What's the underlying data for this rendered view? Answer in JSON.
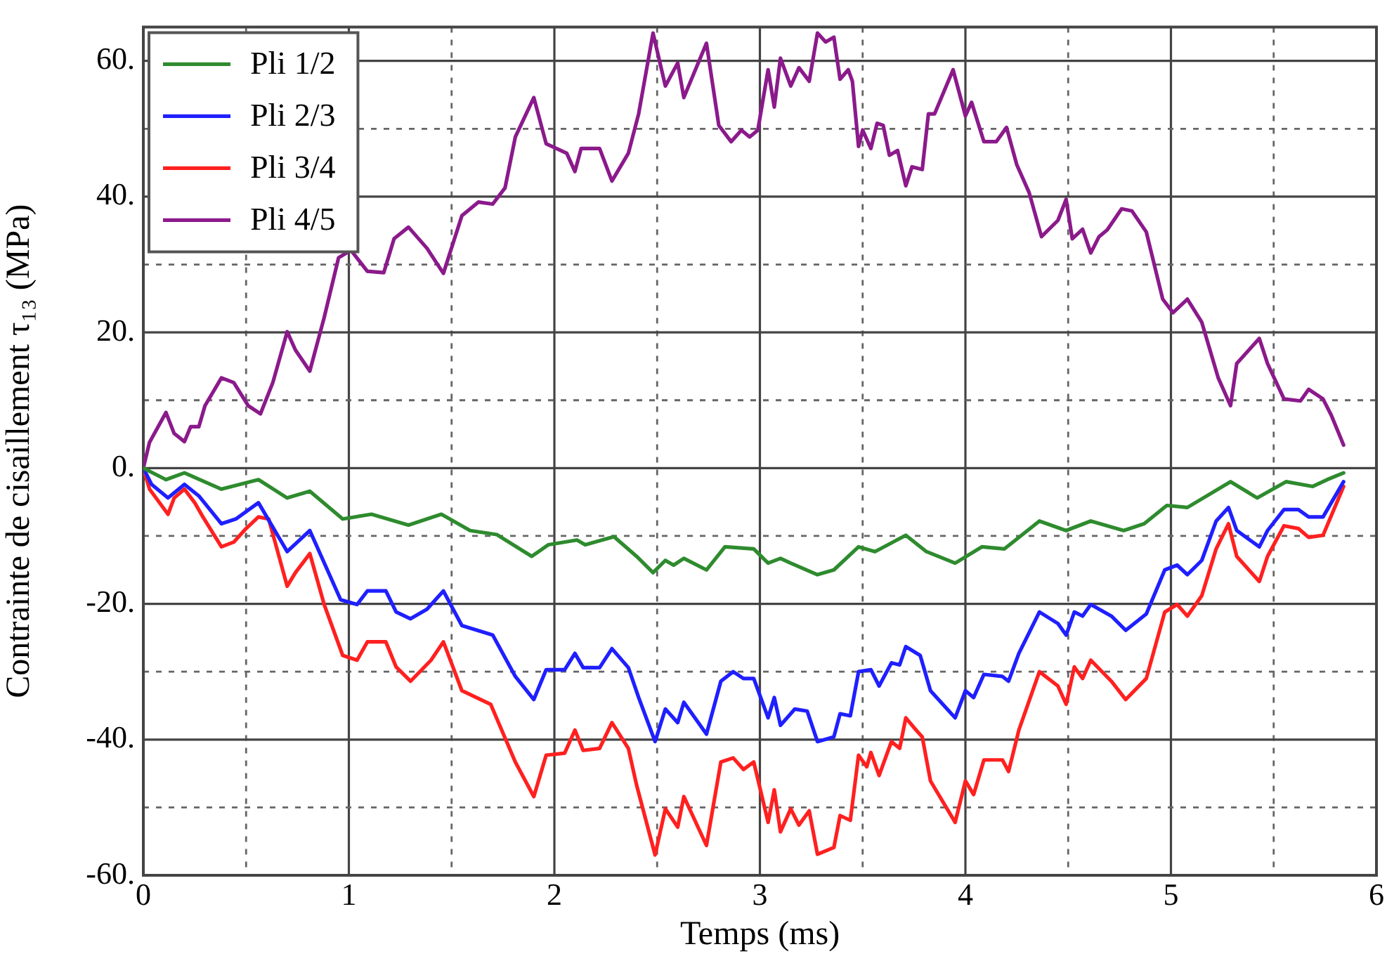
{
  "chart_data": {
    "type": "line",
    "xlabel": "Temps (ms)",
    "ylabel": "Contrainte de cisaillement τ₁₃ (MPa)",
    "xlim": [
      0,
      6
    ],
    "ylim": [
      -60,
      65
    ],
    "xticks": [
      0,
      {
        "value": 0.5,
        "label": null
      },
      1,
      {
        "value": 1.5,
        "label": null
      },
      2,
      {
        "value": 2.5,
        "label": null
      },
      3,
      {
        "value": 3.5,
        "label": null
      },
      4,
      {
        "value": 4.5,
        "label": null
      },
      5,
      {
        "value": 5.5,
        "label": null
      },
      6
    ],
    "yticks": [
      {
        "value": -60,
        "label": "-60."
      },
      {
        "value": -50,
        "label": null
      },
      {
        "value": -40,
        "label": "-40."
      },
      {
        "value": -30,
        "label": null
      },
      {
        "value": -20,
        "label": "-20."
      },
      {
        "value": -10,
        "label": null
      },
      {
        "value": 0,
        "label": "0."
      },
      {
        "value": 10,
        "label": null
      },
      {
        "value": 20,
        "label": "20."
      },
      {
        "value": 30,
        "label": null
      },
      {
        "value": 40,
        "label": "40."
      },
      {
        "value": 50,
        "label": null
      },
      {
        "value": 60,
        "label": "60."
      }
    ],
    "grid": true,
    "legend": "top left",
    "marker": "none",
    "line_style": "solid",
    "series": [
      {
        "name": "Pli 1/2",
        "color": "#2e8b2e",
        "x": [
          0,
          0.11,
          0.2,
          0.38,
          0.56,
          0.7,
          0.81,
          0.97,
          1.11,
          1.29,
          1.45,
          1.59,
          1.72,
          1.89,
          1.97,
          2.11,
          2.15,
          2.29,
          2.4,
          2.48,
          2.54,
          2.58,
          2.63,
          2.74,
          2.83,
          2.97,
          3.04,
          3.1,
          3.15,
          3.28,
          3.36,
          3.48,
          3.56,
          3.71,
          3.81,
          3.95,
          4.08,
          4.19,
          4.36,
          4.49,
          4.61,
          4.77,
          4.87,
          4.98,
          5.08,
          5.29,
          5.42,
          5.56,
          5.69,
          5.76,
          5.84
        ],
        "values": [
          0,
          -1.7,
          -0.7,
          -3.1,
          -1.7,
          -4.4,
          -3.4,
          -7.5,
          -6.8,
          -8.4,
          -6.8,
          -9.2,
          -9.8,
          -13,
          -11.3,
          -10.6,
          -11.3,
          -10.1,
          -13,
          -15.4,
          -13.6,
          -14.3,
          -13.3,
          -15,
          -11.6,
          -11.9,
          -14,
          -13.3,
          -14,
          -15.7,
          -15,
          -11.6,
          -12.3,
          -9.9,
          -12.3,
          -14,
          -11.6,
          -11.9,
          -7.8,
          -9.2,
          -7.8,
          -9.2,
          -8.2,
          -5.5,
          -5.8,
          -2,
          -4.4,
          -2,
          -2.7,
          -1.7,
          -0.7
        ]
      },
      {
        "name": "Pli 2/3",
        "color": "#1f1fff",
        "x": [
          0,
          0.04,
          0.12,
          0.2,
          0.27,
          0.38,
          0.45,
          0.56,
          0.7,
          0.81,
          0.96,
          1.04,
          1.09,
          1.18,
          1.23,
          1.3,
          1.38,
          1.46,
          1.55,
          1.7,
          1.81,
          1.9,
          1.96,
          2.05,
          2.1,
          2.14,
          2.22,
          2.28,
          2.36,
          2.41,
          2.49,
          2.54,
          2.6,
          2.63,
          2.74,
          2.81,
          2.87,
          2.92,
          2.97,
          3.04,
          3.07,
          3.1,
          3.17,
          3.23,
          3.28,
          3.36,
          3.39,
          3.44,
          3.48,
          3.54,
          3.58,
          3.64,
          3.68,
          3.71,
          3.78,
          3.83,
          3.95,
          4,
          4.04,
          4.09,
          4.18,
          4.21,
          4.26,
          4.36,
          4.45,
          4.49,
          4.53,
          4.57,
          4.61,
          4.71,
          4.78,
          4.88,
          4.97,
          5.03,
          5.08,
          5.15,
          5.22,
          5.28,
          5.32,
          5.43,
          5.47,
          5.55,
          5.62,
          5.67,
          5.74,
          5.84
        ],
        "values": [
          0,
          -2.4,
          -4.4,
          -2.4,
          -4.1,
          -8.2,
          -7.5,
          -5.1,
          -12.3,
          -9.2,
          -19.4,
          -20.1,
          -18.1,
          -18.1,
          -21.2,
          -22.2,
          -20.8,
          -18.1,
          -23.2,
          -24.6,
          -30.7,
          -34.1,
          -29.7,
          -29.7,
          -27.3,
          -29.4,
          -29.4,
          -26.6,
          -29.4,
          -33.8,
          -40.3,
          -35.5,
          -37.5,
          -34.5,
          -39.2,
          -31.4,
          -30,
          -31,
          -31,
          -36.8,
          -33.8,
          -37.9,
          -35.5,
          -35.8,
          -40.3,
          -39.6,
          -36.2,
          -36.5,
          -30,
          -29.7,
          -32.1,
          -28.7,
          -29,
          -26.3,
          -27.6,
          -32.8,
          -36.8,
          -32.8,
          -33.8,
          -30.4,
          -30.7,
          -31.4,
          -27.3,
          -21.2,
          -22.9,
          -24.6,
          -21.2,
          -21.8,
          -20.1,
          -21.8,
          -23.9,
          -21.5,
          -15,
          -14.3,
          -15.7,
          -13.6,
          -7.8,
          -5.8,
          -9.2,
          -11.6,
          -9.2,
          -6.1,
          -6.1,
          -7.2,
          -7.2,
          -2
        ]
      },
      {
        "name": "Pli 3/4",
        "color": "#ff2020",
        "x": [
          0,
          0.03,
          0.12,
          0.15,
          0.2,
          0.25,
          0.29,
          0.38,
          0.44,
          0.5,
          0.56,
          0.61,
          0.7,
          0.74,
          0.81,
          0.88,
          0.97,
          1.04,
          1.09,
          1.18,
          1.23,
          1.3,
          1.4,
          1.46,
          1.55,
          1.69,
          1.81,
          1.9,
          1.96,
          2.05,
          2.1,
          2.14,
          2.22,
          2.28,
          2.36,
          2.4,
          2.49,
          2.54,
          2.6,
          2.63,
          2.74,
          2.81,
          2.87,
          2.92,
          2.97,
          3.04,
          3.07,
          3.1,
          3.15,
          3.19,
          3.24,
          3.28,
          3.36,
          3.39,
          3.44,
          3.48,
          3.52,
          3.54,
          3.58,
          3.64,
          3.68,
          3.71,
          3.76,
          3.79,
          3.83,
          3.95,
          4,
          4.04,
          4.09,
          4.18,
          4.21,
          4.26,
          4.36,
          4.45,
          4.49,
          4.53,
          4.57,
          4.61,
          4.71,
          4.78,
          4.88,
          4.97,
          5.03,
          5.08,
          5.15,
          5.22,
          5.28,
          5.32,
          5.43,
          5.47,
          5.55,
          5.62,
          5.67,
          5.74,
          5.84
        ],
        "values": [
          0,
          -3.1,
          -6.8,
          -4.4,
          -3.1,
          -5.1,
          -7.2,
          -11.6,
          -10.9,
          -8.9,
          -7.2,
          -7.5,
          -17.4,
          -15.4,
          -12.6,
          -20.1,
          -27.6,
          -28.3,
          -25.6,
          -25.6,
          -29.3,
          -31.4,
          -28.3,
          -25.6,
          -32.8,
          -34.8,
          -43.3,
          -48.4,
          -42.3,
          -42,
          -38.6,
          -41.6,
          -41.3,
          -37.5,
          -41.3,
          -46.7,
          -57,
          -50.2,
          -52.9,
          -48.4,
          -55.6,
          -43.3,
          -42.7,
          -44.4,
          -43.3,
          -52.2,
          -47.4,
          -53.6,
          -50.2,
          -52.6,
          -50.5,
          -56.9,
          -55.9,
          -51.2,
          -51.9,
          -42.3,
          -44,
          -41.9,
          -45.3,
          -40.3,
          -41.3,
          -36.8,
          -38.6,
          -39.6,
          -46.1,
          -52.2,
          -46.1,
          -48.1,
          -43,
          -43,
          -44.7,
          -38.6,
          -30,
          -32.1,
          -34.8,
          -29.3,
          -31,
          -28.3,
          -31.4,
          -34.1,
          -31,
          -21.2,
          -20.1,
          -21.8,
          -18.8,
          -11.9,
          -8.2,
          -13,
          -16.7,
          -13,
          -8.5,
          -8.9,
          -10.2,
          -9.9,
          -2.7
        ]
      },
      {
        "name": "Pli 4/5",
        "color": "#8b1a8b",
        "x": [
          0,
          0.03,
          0.11,
          0.15,
          0.2,
          0.23,
          0.27,
          0.3,
          0.38,
          0.44,
          0.51,
          0.57,
          0.63,
          0.7,
          0.74,
          0.81,
          0.88,
          0.95,
          1.01,
          1.09,
          1.17,
          1.22,
          1.29,
          1.38,
          1.46,
          1.55,
          1.63,
          1.7,
          1.76,
          1.81,
          1.9,
          1.96,
          2.06,
          2.1,
          2.13,
          2.22,
          2.28,
          2.36,
          2.41,
          2.48,
          2.54,
          2.6,
          2.63,
          2.74,
          2.8,
          2.86,
          2.91,
          2.95,
          2.99,
          3.04,
          3.07,
          3.1,
          3.15,
          3.19,
          3.24,
          3.28,
          3.32,
          3.36,
          3.39,
          3.43,
          3.45,
          3.48,
          3.5,
          3.54,
          3.57,
          3.6,
          3.63,
          3.67,
          3.71,
          3.74,
          3.79,
          3.82,
          3.85,
          3.94,
          4,
          4.03,
          4.09,
          4.15,
          4.2,
          4.25,
          4.31,
          4.37,
          4.45,
          4.49,
          4.52,
          4.57,
          4.61,
          4.65,
          4.69,
          4.76,
          4.81,
          4.88,
          4.96,
          5.01,
          5.08,
          5.15,
          5.23,
          5.29,
          5.32,
          5.43,
          5.47,
          5.55,
          5.63,
          5.67,
          5.74,
          5.78,
          5.84
        ],
        "values": [
          0,
          3.8,
          8.2,
          5.1,
          3.9,
          6.1,
          6.1,
          9.2,
          13.3,
          12.6,
          9.2,
          8,
          12.6,
          20.1,
          17.4,
          14.3,
          22.2,
          31,
          32.1,
          29,
          28.8,
          33.8,
          35.5,
          32.4,
          28.7,
          37.2,
          39.2,
          38.9,
          41.3,
          48.8,
          54.6,
          47.8,
          46.4,
          43.7,
          47.1,
          47.1,
          42.3,
          46.4,
          52.2,
          64.1,
          56.3,
          59.7,
          54.6,
          62.6,
          50.5,
          48.1,
          49.8,
          48.8,
          49.8,
          58.7,
          53.2,
          60.4,
          56.3,
          59,
          57,
          64.1,
          62.8,
          63.5,
          57.3,
          58.7,
          57,
          47.4,
          49.8,
          47.1,
          50.8,
          50.5,
          46.1,
          46.8,
          41.6,
          44.4,
          44,
          52.2,
          52.2,
          58.7,
          51.9,
          53.9,
          48.1,
          48.1,
          50.2,
          44.7,
          40.6,
          34.1,
          36.5,
          39.6,
          33.8,
          35.2,
          31.7,
          34.1,
          35.1,
          38.2,
          37.9,
          34.8,
          24.9,
          22.9,
          24.9,
          21.5,
          13.3,
          9.2,
          15.4,
          19.1,
          15.4,
          10.2,
          9.9,
          11.6,
          10.2,
          7.8,
          3.4
        ]
      }
    ]
  }
}
